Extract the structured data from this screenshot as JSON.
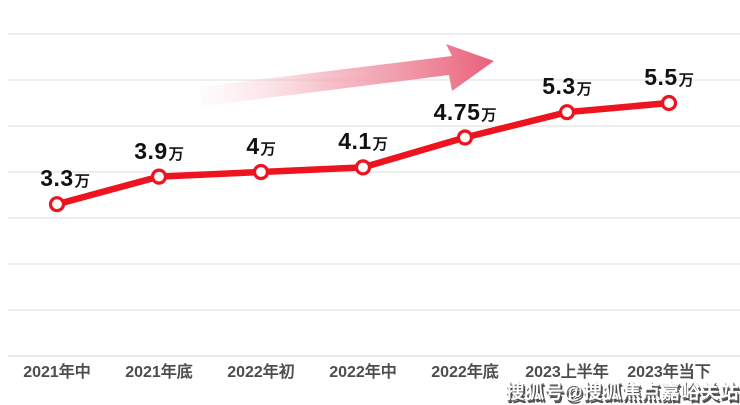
{
  "chart_data": {
    "type": "line",
    "title": "",
    "xlabel": "",
    "ylabel": "",
    "unit_suffix": "万",
    "categories": [
      "2021年中",
      "2021年底",
      "2022年初",
      "2022年中",
      "2022年底",
      "2023上半年",
      "2023年当下"
    ],
    "values": [
      3.3,
      3.9,
      4.0,
      4.1,
      4.75,
      5.3,
      5.5
    ],
    "display_values": [
      "3.3",
      "3.9",
      "4",
      "4.1",
      "4.75",
      "5.3",
      "5.5"
    ],
    "point_labels": [
      "3.3万",
      "3.9万",
      "4万",
      "4.1万",
      "4.75万",
      "5.3万",
      "5.5万"
    ],
    "ylim": [
      0,
      7
    ],
    "gridline_step": 1,
    "grid": true,
    "legend": false,
    "line_color": "#ed1420",
    "marker_fill": "#ffffff",
    "marker_stroke": "#ed1420",
    "gridline_color": "#e9e9e9",
    "axis_line_color": "#e2e2e2",
    "annotations": [
      {
        "name": "trend-arrow",
        "direction": "up-right",
        "gradient_from": "#fbdce1",
        "gradient_mid": "#f3aab7",
        "gradient_to": "#e9607a"
      }
    ]
  },
  "watermark": {
    "text": "搜狐号@搜狐焦点嘉峪关站",
    "color": "#ffffff",
    "shadow_color": "#4f4f4f"
  }
}
